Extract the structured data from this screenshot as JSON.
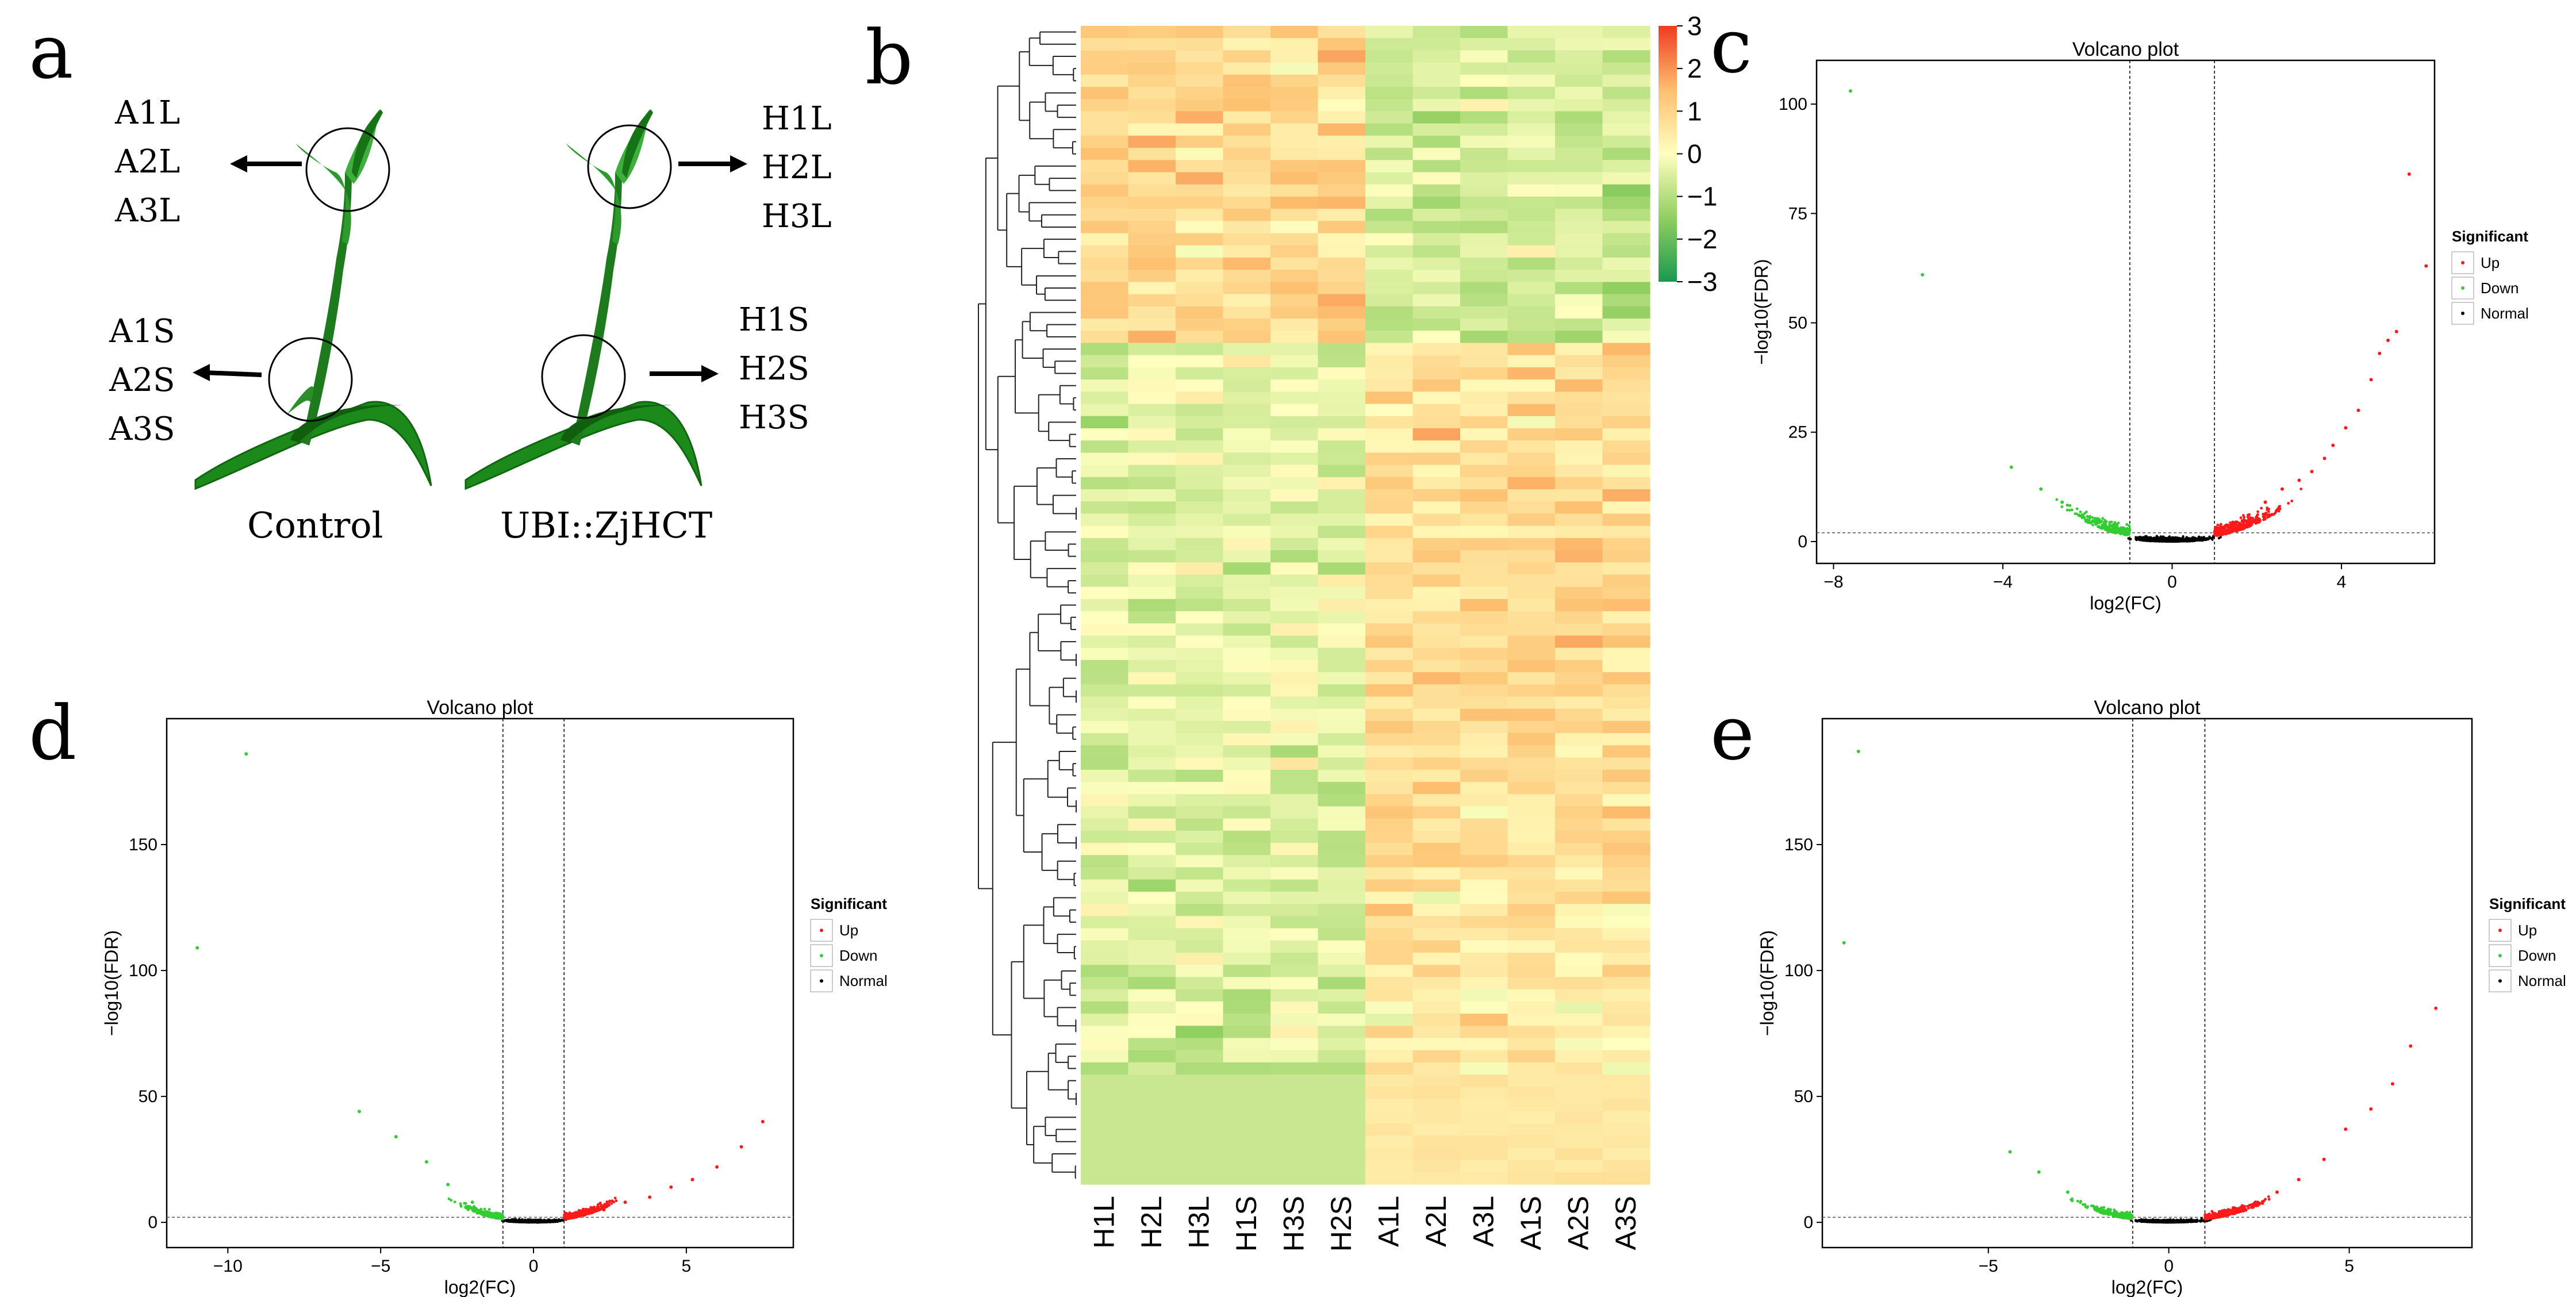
{
  "panel_labels": {
    "a": "a",
    "b": "b",
    "c": "c",
    "d": "d",
    "e": "e"
  },
  "panel_a": {
    "control_label": "Control",
    "transgenic_label": "UBI::ZjHCT",
    "control_leaf_samples": [
      "A1L",
      "A2L",
      "A3L"
    ],
    "control_stem_samples": [
      "A1S",
      "A2S",
      "A3S"
    ],
    "transgenic_leaf_samples": [
      "H1L",
      "H2L",
      "H3L"
    ],
    "transgenic_stem_samples": [
      "H1S",
      "H2S",
      "H3S"
    ]
  },
  "colors": {
    "up": "#ff1a1a",
    "down": "#33cc33",
    "normal": "#000000",
    "high": "#f03b20",
    "mid": "#ffffbf",
    "low": "#1a9850"
  },
  "chart_data": [
    {
      "panel": "b",
      "type": "heatmap",
      "columns": [
        "H1L",
        "H2L",
        "H3L",
        "H1S",
        "H3S",
        "H2S",
        "A1L",
        "A2L",
        "A3L",
        "A1S",
        "A2S",
        "A3S"
      ],
      "colorbar_ticks": [
        "3",
        "2",
        "1",
        "0",
        "−1",
        "−2",
        "−3"
      ],
      "colorbar_range": [
        -3,
        3
      ],
      "n_rows": 95,
      "dendrogram": "rows"
    },
    {
      "panel": "c",
      "type": "scatter",
      "title": "Volcano plot",
      "xlabel": "log2(FC)",
      "ylabel": "−log10(FDR)",
      "xticks": [
        "−8",
        "−4",
        "0",
        "4"
      ],
      "yticks": [
        "0",
        "25",
        "50",
        "75",
        "100"
      ],
      "xlim": [
        -8.4,
        6.2
      ],
      "ylim": [
        -5,
        110
      ],
      "fc_thresholds": [
        -1,
        1
      ],
      "fdr_threshold": 2,
      "legend": {
        "title": "Significant",
        "entries": [
          "Up",
          "Down",
          "Normal"
        ],
        "position": "right"
      },
      "series": [
        {
          "name": "Up",
          "points": [
            [
              5.6,
              84
            ],
            [
              6.0,
              63
            ],
            [
              5.1,
              46
            ],
            [
              5.3,
              48
            ],
            [
              4.9,
              43
            ],
            [
              4.7,
              37
            ],
            [
              4.4,
              30
            ],
            [
              4.1,
              26
            ],
            [
              3.8,
              22
            ],
            [
              3.6,
              19
            ],
            [
              3.3,
              16
            ],
            [
              3.0,
              14
            ],
            [
              2.6,
              12
            ],
            [
              2.2,
              9
            ],
            [
              1.8,
              6
            ],
            [
              1.5,
              4
            ]
          ]
        },
        {
          "name": "Down",
          "points": [
            [
              -7.6,
              103
            ],
            [
              -5.9,
              61
            ],
            [
              -3.8,
              17
            ],
            [
              -3.1,
              12
            ],
            [
              -2.6,
              9
            ],
            [
              -2.2,
              6
            ],
            [
              -1.8,
              4
            ],
            [
              -1.4,
              3
            ]
          ]
        }
      ]
    },
    {
      "panel": "d",
      "type": "scatter",
      "title": "Volcano plot",
      "xlabel": "log2(FC)",
      "ylabel": "−log10(FDR)",
      "xticks": [
        "−10",
        "−5",
        "0",
        "5"
      ],
      "yticks": [
        "0",
        "50",
        "100",
        "150"
      ],
      "xlim": [
        -12,
        8.5
      ],
      "ylim": [
        -10,
        200
      ],
      "fc_thresholds": [
        -1,
        1
      ],
      "fdr_threshold": 2,
      "legend": {
        "title": "Significant",
        "entries": [
          "Up",
          "Down",
          "Normal"
        ],
        "position": "right"
      },
      "series": [
        {
          "name": "Up",
          "points": [
            [
              7.5,
              40
            ],
            [
              6.8,
              30
            ],
            [
              6.0,
              22
            ],
            [
              5.2,
              17
            ],
            [
              4.5,
              14
            ],
            [
              3.8,
              10
            ],
            [
              3.0,
              8
            ],
            [
              2.3,
              5
            ],
            [
              1.6,
              3
            ]
          ]
        },
        {
          "name": "Down",
          "points": [
            [
              -9.4,
              186
            ],
            [
              -11.0,
              109
            ],
            [
              -5.7,
              44
            ],
            [
              -4.5,
              34
            ],
            [
              -3.5,
              24
            ],
            [
              -2.8,
              15
            ],
            [
              -2.0,
              8
            ],
            [
              -1.4,
              3
            ]
          ]
        }
      ]
    },
    {
      "panel": "e",
      "type": "scatter",
      "title": "Volcano plot",
      "xlabel": "log2(FC)",
      "ylabel": "−log10(FDR)",
      "xticks": [
        "−5",
        "0",
        "5"
      ],
      "yticks": [
        "0",
        "50",
        "100",
        "150"
      ],
      "xlim": [
        -9.6,
        8.4
      ],
      "ylim": [
        -10,
        200
      ],
      "fc_thresholds": [
        -1,
        1
      ],
      "fdr_threshold": 2,
      "legend": {
        "title": "Significant",
        "entries": [
          "Up",
          "Down",
          "Normal"
        ],
        "position": "right"
      },
      "series": [
        {
          "name": "Up",
          "points": [
            [
              7.4,
              85
            ],
            [
              6.7,
              70
            ],
            [
              6.2,
              55
            ],
            [
              5.6,
              45
            ],
            [
              4.9,
              37
            ],
            [
              4.3,
              25
            ],
            [
              3.6,
              17
            ],
            [
              3.0,
              12
            ],
            [
              2.4,
              8
            ],
            [
              1.8,
              5
            ]
          ]
        },
        {
          "name": "Down",
          "points": [
            [
              -8.6,
              187
            ],
            [
              -9.0,
              111
            ],
            [
              -4.4,
              28
            ],
            [
              -3.6,
              20
            ],
            [
              -2.8,
              12
            ],
            [
              -2.0,
              6
            ],
            [
              -1.4,
              3
            ]
          ]
        }
      ]
    }
  ]
}
